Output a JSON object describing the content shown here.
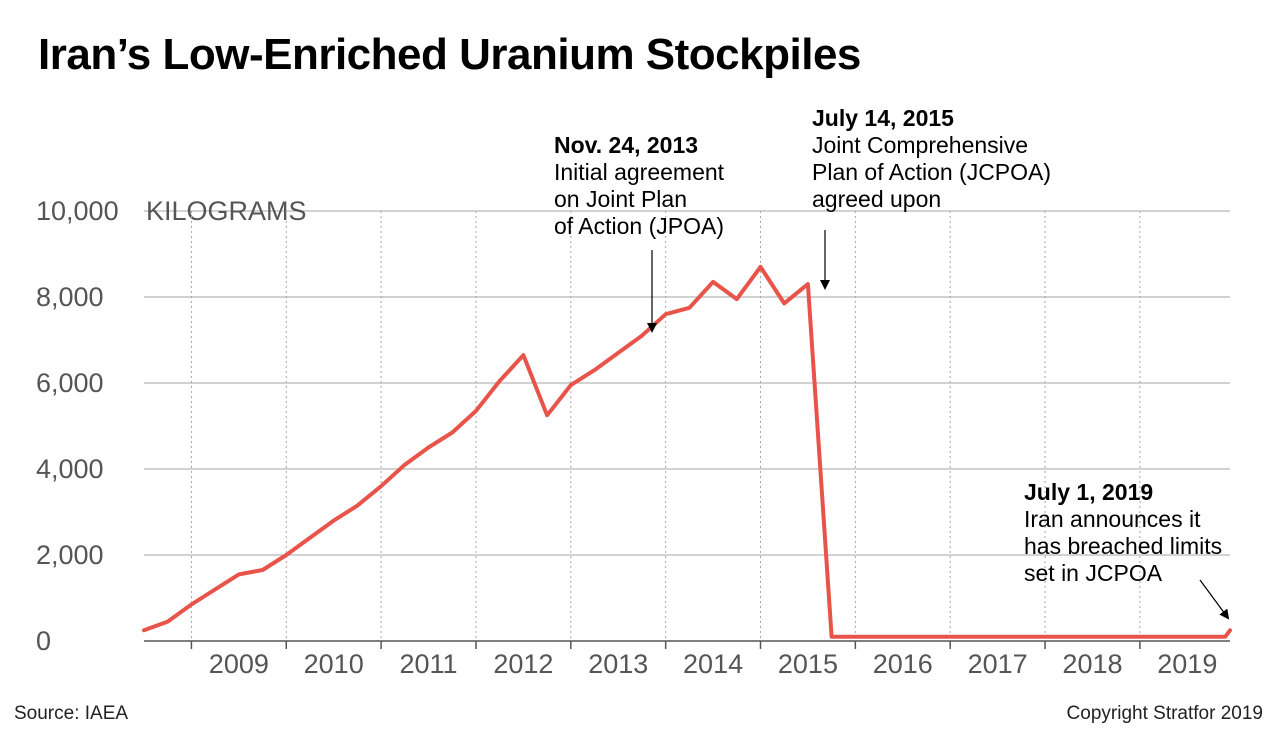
{
  "title": "Iran’s Low-Enriched Uranium Stockpiles",
  "source": "Source: IAEA",
  "copyright": "Copyright Stratfor 2019",
  "colors": {
    "line": "#e8534a",
    "grid": "#a6a6a6",
    "axis": "#555555",
    "tick_text": "#555555",
    "annotation_text": "#000000"
  },
  "chart_data": {
    "type": "line",
    "title": "Iran’s Low-Enriched Uranium Stockpiles",
    "xlabel": "",
    "ylabel": "",
    "y_unit_label": "KILOGRAMS",
    "ylim": [
      0,
      10000
    ],
    "xlim": [
      2008.0,
      2019.45
    ],
    "grid": true,
    "y_ticks": [
      0,
      2000,
      4000,
      6000,
      8000,
      10000
    ],
    "y_tick_labels": [
      "0",
      "2,000",
      "4,000",
      "6,000",
      "8,000",
      "10,000"
    ],
    "x_tick_labels": [
      "2009",
      "2010",
      "2011",
      "2012",
      "2013",
      "2014",
      "2015",
      "2016",
      "2017",
      "2018",
      "2019"
    ],
    "series": [
      {
        "points": [
          [
            2008.0,
            250
          ],
          [
            2008.25,
            450
          ],
          [
            2008.5,
            850
          ],
          [
            2008.75,
            1200
          ],
          [
            2009.0,
            1550
          ],
          [
            2009.25,
            1650
          ],
          [
            2009.5,
            2000
          ],
          [
            2009.75,
            2400
          ],
          [
            2010.0,
            2800
          ],
          [
            2010.25,
            3150
          ],
          [
            2010.5,
            3600
          ],
          [
            2010.75,
            4100
          ],
          [
            2011.0,
            4500
          ],
          [
            2011.25,
            4850
          ],
          [
            2011.5,
            5350
          ],
          [
            2011.75,
            6050
          ],
          [
            2012.0,
            6650
          ],
          [
            2012.25,
            5250
          ],
          [
            2012.5,
            5950
          ],
          [
            2012.75,
            6300
          ],
          [
            2013.0,
            6700
          ],
          [
            2013.25,
            7100
          ],
          [
            2013.5,
            7600
          ],
          [
            2013.75,
            7750
          ],
          [
            2014.0,
            8350
          ],
          [
            2014.25,
            7950
          ],
          [
            2014.5,
            8700
          ],
          [
            2014.75,
            7850
          ],
          [
            2015.0,
            8300
          ],
          [
            2015.25,
            100
          ],
          [
            2016.0,
            100
          ],
          [
            2017.0,
            100
          ],
          [
            2018.0,
            100
          ],
          [
            2019.4,
            100
          ],
          [
            2019.45,
            250
          ]
        ]
      }
    ],
    "annotations": [
      {
        "date": "Nov. 24, 2013",
        "text": [
          "Initial agreement",
          "on Joint Plan",
          "of Action (JPOA)"
        ],
        "x": 2012.78,
        "y": 7100
      },
      {
        "date": "July 14, 2015",
        "text": [
          "Joint Comprehensive",
          "Plan of Action (JCPOA)",
          "agreed upon"
        ],
        "x": 2014.75,
        "y": 7950
      },
      {
        "date": "July 1, 2019",
        "text": [
          "Iran announces it",
          "has breached limits",
          "set in JCPOA"
        ],
        "x": 2019.43,
        "y": 350
      }
    ]
  }
}
